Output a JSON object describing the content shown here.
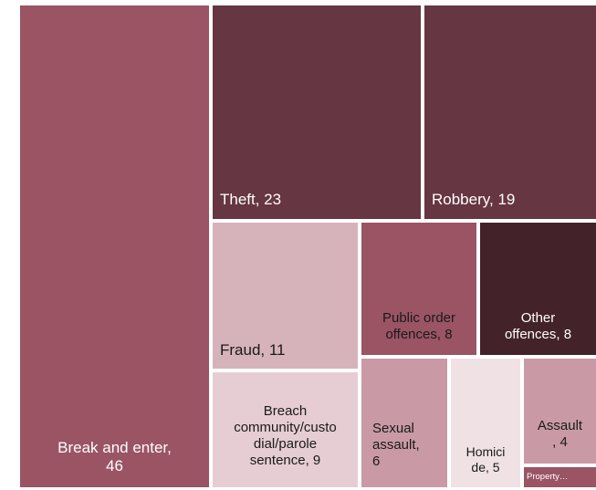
{
  "chart_data": {
    "type": "treemap",
    "items": [
      {
        "label": "Break and enter",
        "value": 46,
        "color": "#9a5464",
        "text_color": "#ffffff",
        "display": "Break and enter,\n46"
      },
      {
        "label": "Theft",
        "value": 23,
        "color": "#663642",
        "text_color": "#ffffff",
        "display": "Theft, 23"
      },
      {
        "label": "Robbery",
        "value": 19,
        "color": "#663642",
        "text_color": "#ffffff",
        "display": "Robbery, 19"
      },
      {
        "label": "Fraud",
        "value": 11,
        "color": "#d6b3bb",
        "text_color": "#1a1a1a",
        "display": "Fraud, 11"
      },
      {
        "label": "Public order offences",
        "value": 8,
        "color": "#9a5464",
        "text_color": "#1a1a1a",
        "display": "Public order\noffences, 8"
      },
      {
        "label": "Other offences",
        "value": 8,
        "color": "#432329",
        "text_color": "#ffffff",
        "display": "Other\noffences, 8"
      },
      {
        "label": "Breach community/custodial/parole sentence",
        "value": 9,
        "color": "#e6cdd3",
        "text_color": "#1a1a1a",
        "display": "Breach\ncommunity/custo\ndial/parole\nsentence, 9"
      },
      {
        "label": "Sexual assault",
        "value": 6,
        "color": "#c99aa6",
        "text_color": "#1a1a1a",
        "display": "Sexual\nassault,\n6"
      },
      {
        "label": "Homicide",
        "value": 5,
        "color": "#f0e1e4",
        "text_color": "#1a1a1a",
        "display": "Homici\nde, 5"
      },
      {
        "label": "Assault",
        "value": 4,
        "color": "#c99aa6",
        "text_color": "#1a1a1a",
        "display": "Assault\n, 4"
      },
      {
        "label": "Property…",
        "value": 1,
        "color": "#9a5464",
        "text_color": "#ffffff",
        "display": "Property…"
      }
    ]
  }
}
